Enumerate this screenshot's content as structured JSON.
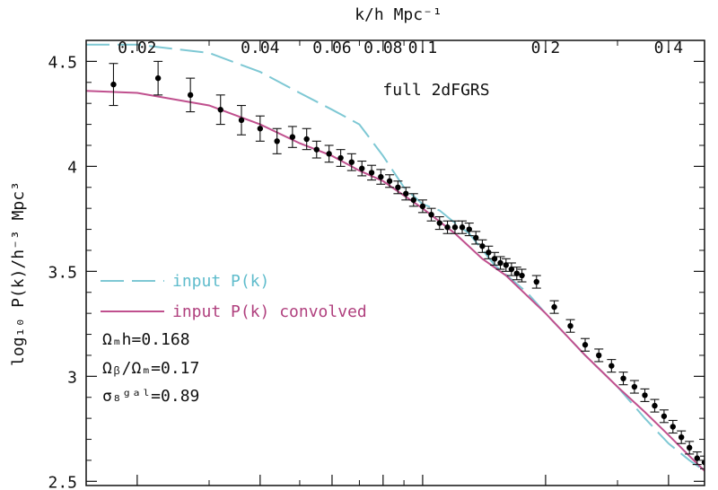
{
  "chart_data": {
    "type": "scatter",
    "title": "",
    "annotation": "full 2dFGRS",
    "xlabel": "k/h Mpc⁻¹",
    "ylabel": "log₁₀ P(k)/h⁻³ Mpc³",
    "x_scale": "log",
    "xlim": [
      0.015,
      0.49
    ],
    "ylim": [
      2.48,
      4.6
    ],
    "x_ticks": [
      0.02,
      0.04,
      0.06,
      0.08,
      0.1,
      0.2,
      0.4
    ],
    "x_tick_labels": [
      "0.02",
      "0.04",
      "0.06",
      "0.08",
      "0.1",
      "0.2",
      "0.4"
    ],
    "y_ticks": [
      2.5,
      3,
      3.5,
      4,
      4.5
    ],
    "y_tick_labels": [
      "2.5",
      "3",
      "3.5",
      "4",
      "4.5"
    ],
    "legend_position": "left",
    "series": [
      {
        "name": "input P(k)",
        "kind": "line",
        "style": "dashed",
        "color": "#7ec8d4",
        "points": [
          [
            0.015,
            4.58
          ],
          [
            0.02,
            4.58
          ],
          [
            0.03,
            4.54
          ],
          [
            0.04,
            4.45
          ],
          [
            0.05,
            4.35
          ],
          [
            0.06,
            4.27
          ],
          [
            0.07,
            4.2
          ],
          [
            0.08,
            4.05
          ],
          [
            0.09,
            3.9
          ],
          [
            0.1,
            3.82
          ],
          [
            0.11,
            3.79
          ],
          [
            0.12,
            3.73
          ],
          [
            0.13,
            3.68
          ],
          [
            0.15,
            3.53
          ],
          [
            0.18,
            3.4
          ],
          [
            0.2,
            3.3
          ],
          [
            0.25,
            3.1
          ],
          [
            0.3,
            2.95
          ],
          [
            0.35,
            2.8
          ],
          [
            0.4,
            2.68
          ],
          [
            0.45,
            2.6
          ],
          [
            0.49,
            2.55
          ]
        ]
      },
      {
        "name": "input P(k) convolved",
        "kind": "line",
        "style": "solid",
        "color": "#c0508e",
        "points": [
          [
            0.015,
            4.36
          ],
          [
            0.02,
            4.35
          ],
          [
            0.03,
            4.29
          ],
          [
            0.04,
            4.2
          ],
          [
            0.05,
            4.11
          ],
          [
            0.06,
            4.05
          ],
          [
            0.07,
            3.98
          ],
          [
            0.08,
            3.93
          ],
          [
            0.1,
            3.8
          ],
          [
            0.12,
            3.68
          ],
          [
            0.14,
            3.56
          ],
          [
            0.16,
            3.48
          ],
          [
            0.2,
            3.3
          ],
          [
            0.25,
            3.1
          ],
          [
            0.3,
            2.95
          ],
          [
            0.35,
            2.83
          ],
          [
            0.4,
            2.72
          ],
          [
            0.45,
            2.62
          ],
          [
            0.49,
            2.55
          ]
        ]
      },
      {
        "name": "",
        "kind": "points",
        "color": "#000000",
        "points": [
          [
            0.0175,
            4.39,
            0.1
          ],
          [
            0.0225,
            4.42,
            0.08
          ],
          [
            0.027,
            4.34,
            0.08
          ],
          [
            0.032,
            4.27,
            0.07
          ],
          [
            0.036,
            4.22,
            0.07
          ],
          [
            0.04,
            4.18,
            0.06
          ],
          [
            0.044,
            4.12,
            0.06
          ],
          [
            0.048,
            4.14,
            0.05
          ],
          [
            0.052,
            4.13,
            0.05
          ],
          [
            0.055,
            4.08,
            0.04
          ],
          [
            0.059,
            4.06,
            0.04
          ],
          [
            0.063,
            4.04,
            0.04
          ],
          [
            0.067,
            4.02,
            0.04
          ],
          [
            0.071,
            3.99,
            0.035
          ],
          [
            0.075,
            3.97,
            0.035
          ],
          [
            0.079,
            3.95,
            0.035
          ],
          [
            0.083,
            3.93,
            0.03
          ],
          [
            0.087,
            3.9,
            0.03
          ],
          [
            0.091,
            3.87,
            0.03
          ],
          [
            0.095,
            3.84,
            0.03
          ],
          [
            0.1,
            3.81,
            0.03
          ],
          [
            0.105,
            3.77,
            0.03
          ],
          [
            0.11,
            3.73,
            0.03
          ],
          [
            0.115,
            3.71,
            0.03
          ],
          [
            0.12,
            3.71,
            0.03
          ],
          [
            0.125,
            3.71,
            0.03
          ],
          [
            0.13,
            3.7,
            0.03
          ],
          [
            0.135,
            3.66,
            0.03
          ],
          [
            0.14,
            3.62,
            0.03
          ],
          [
            0.145,
            3.59,
            0.03
          ],
          [
            0.15,
            3.56,
            0.03
          ],
          [
            0.155,
            3.54,
            0.03
          ],
          [
            0.16,
            3.53,
            0.03
          ],
          [
            0.165,
            3.51,
            0.03
          ],
          [
            0.17,
            3.49,
            0.03
          ],
          [
            0.175,
            3.48,
            0.03
          ],
          [
            0.19,
            3.45,
            0.03
          ],
          [
            0.21,
            3.33,
            0.03
          ],
          [
            0.23,
            3.24,
            0.03
          ],
          [
            0.25,
            3.15,
            0.03
          ],
          [
            0.27,
            3.1,
            0.03
          ],
          [
            0.29,
            3.05,
            0.03
          ],
          [
            0.31,
            2.99,
            0.03
          ],
          [
            0.33,
            2.95,
            0.03
          ],
          [
            0.35,
            2.91,
            0.03
          ],
          [
            0.37,
            2.86,
            0.03
          ],
          [
            0.39,
            2.81,
            0.03
          ],
          [
            0.41,
            2.76,
            0.03
          ],
          [
            0.43,
            2.71,
            0.03
          ],
          [
            0.45,
            2.66,
            0.03
          ],
          [
            0.47,
            2.61,
            0.03
          ],
          [
            0.49,
            2.59,
            0.03
          ]
        ]
      }
    ],
    "parameters": [
      "Ωₘh=0.168",
      "Ωᵦ/Ωₘ=0.17",
      "σ₈ᵍᵃˡ=0.89"
    ]
  }
}
